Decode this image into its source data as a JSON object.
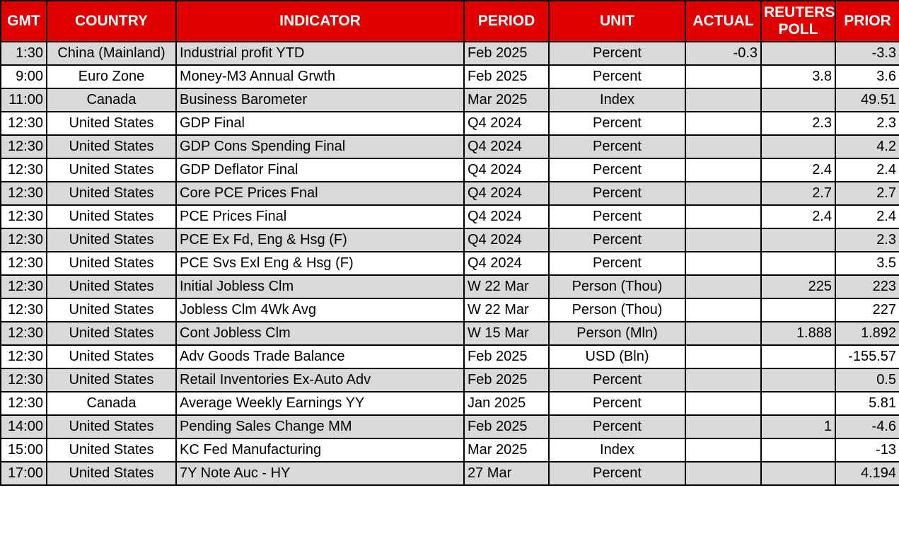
{
  "colors": {
    "header_bg": "#e00000",
    "header_text": "#ffffff",
    "row_alt_bg": "#d9d9d9",
    "row_bg": "#ffffff",
    "border": "#000000",
    "cell_text": "#000000"
  },
  "table": {
    "columns": [
      {
        "key": "gmt",
        "label": "GMT"
      },
      {
        "key": "country",
        "label": "COUNTRY"
      },
      {
        "key": "indicator",
        "label": "INDICATOR"
      },
      {
        "key": "period",
        "label": "PERIOD"
      },
      {
        "key": "unit",
        "label": "UNIT"
      },
      {
        "key": "actual",
        "label": "ACTUAL"
      },
      {
        "key": "poll",
        "label": "REUTERS POLL"
      },
      {
        "key": "prior",
        "label": "PRIOR"
      }
    ],
    "rows": [
      {
        "gmt": "1:30",
        "country": "China (Mainland)",
        "indicator": "Industrial profit YTD",
        "period": "Feb 2025",
        "unit": "Percent",
        "actual": "-0.3",
        "poll": "",
        "prior": "-3.3"
      },
      {
        "gmt": "9:00",
        "country": "Euro Zone",
        "indicator": "Money-M3 Annual Grwth",
        "period": "Feb 2025",
        "unit": "Percent",
        "actual": "",
        "poll": "3.8",
        "prior": "3.6"
      },
      {
        "gmt": "11:00",
        "country": "Canada",
        "indicator": "Business Barometer",
        "period": "Mar 2025",
        "unit": "Index",
        "actual": "",
        "poll": "",
        "prior": "49.51"
      },
      {
        "gmt": "12:30",
        "country": "United States",
        "indicator": "GDP Final",
        "period": "Q4 2024",
        "unit": "Percent",
        "actual": "",
        "poll": "2.3",
        "prior": "2.3"
      },
      {
        "gmt": "12:30",
        "country": "United States",
        "indicator": "GDP Cons Spending Final",
        "period": "Q4 2024",
        "unit": "Percent",
        "actual": "",
        "poll": "",
        "prior": "4.2"
      },
      {
        "gmt": "12:30",
        "country": "United States",
        "indicator": "GDP Deflator Final",
        "period": "Q4 2024",
        "unit": "Percent",
        "actual": "",
        "poll": "2.4",
        "prior": "2.4"
      },
      {
        "gmt": "12:30",
        "country": "United States",
        "indicator": "Core PCE Prices Fnal",
        "period": "Q4 2024",
        "unit": "Percent",
        "actual": "",
        "poll": "2.7",
        "prior": "2.7"
      },
      {
        "gmt": "12:30",
        "country": "United States",
        "indicator": "PCE Prices Final",
        "period": "Q4 2024",
        "unit": "Percent",
        "actual": "",
        "poll": "2.4",
        "prior": "2.4"
      },
      {
        "gmt": "12:30",
        "country": "United States",
        "indicator": "PCE Ex Fd, Eng & Hsg (F)",
        "period": "Q4 2024",
        "unit": "Percent",
        "actual": "",
        "poll": "",
        "prior": "2.3"
      },
      {
        "gmt": "12:30",
        "country": "United States",
        "indicator": "PCE Svs Exl Eng & Hsg (F)",
        "period": "Q4 2024",
        "unit": "Percent",
        "actual": "",
        "poll": "",
        "prior": "3.5"
      },
      {
        "gmt": "12:30",
        "country": "United States",
        "indicator": "Initial Jobless Clm",
        "period": "W 22 Mar",
        "unit": "Person (Thou)",
        "actual": "",
        "poll": "225",
        "prior": "223"
      },
      {
        "gmt": "12:30",
        "country": "United States",
        "indicator": "Jobless Clm 4Wk Avg",
        "period": "W 22 Mar",
        "unit": "Person (Thou)",
        "actual": "",
        "poll": "",
        "prior": "227"
      },
      {
        "gmt": "12:30",
        "country": "United States",
        "indicator": "Cont Jobless Clm",
        "period": "W 15 Mar",
        "unit": "Person (Mln)",
        "actual": "",
        "poll": "1.888",
        "prior": "1.892"
      },
      {
        "gmt": "12:30",
        "country": "United States",
        "indicator": "Adv Goods Trade Balance",
        "period": "Feb 2025",
        "unit": "USD (Bln)",
        "actual": "",
        "poll": "",
        "prior": "-155.57"
      },
      {
        "gmt": "12:30",
        "country": "United States",
        "indicator": "Retail Inventories Ex-Auto Adv",
        "period": "Feb 2025",
        "unit": "Percent",
        "actual": "",
        "poll": "",
        "prior": "0.5"
      },
      {
        "gmt": "12:30",
        "country": "Canada",
        "indicator": "Average Weekly Earnings YY",
        "period": "Jan 2025",
        "unit": "Percent",
        "actual": "",
        "poll": "",
        "prior": "5.81"
      },
      {
        "gmt": "14:00",
        "country": "United States",
        "indicator": "Pending Sales Change MM",
        "period": "Feb 2025",
        "unit": "Percent",
        "actual": "",
        "poll": "1",
        "prior": "-4.6"
      },
      {
        "gmt": "15:00",
        "country": "United States",
        "indicator": "KC Fed Manufacturing",
        "period": "Mar 2025",
        "unit": "Index",
        "actual": "",
        "poll": "",
        "prior": "-13"
      },
      {
        "gmt": "17:00",
        "country": "United States",
        "indicator": "7Y Note Auc - HY",
        "period": "27 Mar",
        "unit": "Percent",
        "actual": "",
        "poll": "",
        "prior": "4.194"
      }
    ]
  }
}
